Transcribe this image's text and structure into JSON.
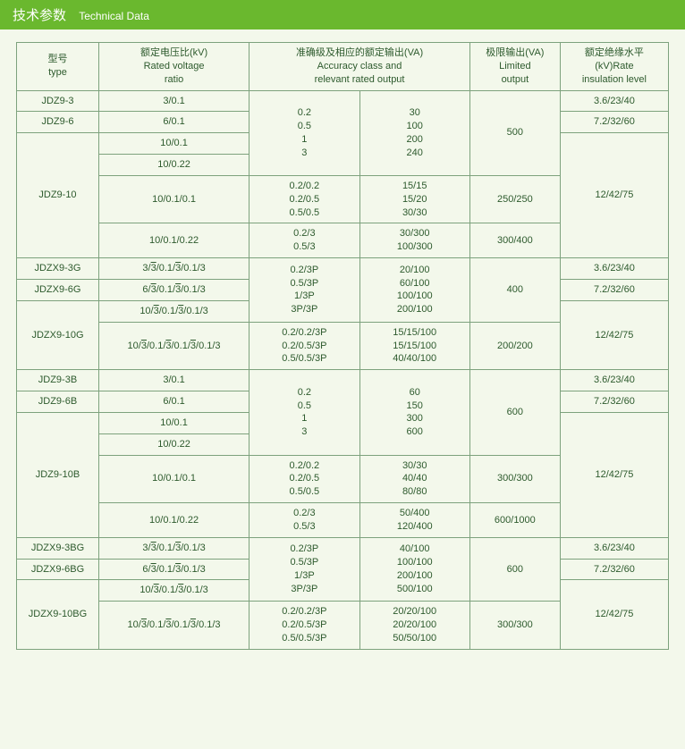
{
  "header": {
    "cn": "技术参数",
    "en": "Technical Data"
  },
  "cols": {
    "type": {
      "cn": "型号",
      "en": "type"
    },
    "ratio": {
      "cn": "额定电压比(kV)",
      "en1": "Rated voltage",
      "en2": "ratio"
    },
    "accuracy": {
      "cn": "准确级及相应的额定输出(VA)",
      "en1": "Accuracy class and",
      "en2": "relevant rated output"
    },
    "limited": {
      "cn": "极限输出(VA)",
      "en1": "Limited",
      "en2": "output"
    },
    "insul": {
      "cn": "额定绝缘水平",
      "en1": "(kV)Rate",
      "en2": "insulation level"
    }
  },
  "t": {
    "jdz9_3": "JDZ9-3",
    "jdz9_6": "JDZ9-6",
    "jdz9_10": "JDZ9-10",
    "jdzx9_3g": "JDZX9-3G",
    "jdzx9_6g": "JDZX9-6G",
    "jdzx9_10g": "JDZX9-10G",
    "jdz9_3b": "JDZ9-3B",
    "jdz9_6b": "JDZ9-6B",
    "jdz9_10b": "JDZ9-10B",
    "jdzx9_3bg": "JDZX9-3BG",
    "jdzx9_6bg": "JDZX9-6BG",
    "jdzx9_10bg": "JDZX9-10BG"
  },
  "r": {
    "r3": "3/0.1",
    "r6": "6/0.1",
    "r10_1": "10/0.1",
    "r10_22": "10/0.22",
    "r10_1_1": "10/0.1/0.1",
    "r10_1_22": "10/0.1/0.22"
  },
  "acc": {
    "a1": "0.2\n0.5\n1\n3",
    "a2": "0.2/0.2\n0.2/0.5\n0.5/0.5",
    "a3": "0.2/3\n0.5/3",
    "g1": "0.2/3P\n0.5/3P\n1/3P\n3P/3P",
    "g2": "0.2/0.2/3P\n0.2/0.5/3P\n0.5/0.5/3P"
  },
  "out": {
    "o1": "30\n100\n200\n240",
    "o2": "15/15\n15/20\n30/30",
    "o3": "30/300\n100/300",
    "g1": "20/100\n60/100\n100/100\n200/100",
    "g2": "15/15/100\n15/15/100\n40/40/100",
    "b1": "60\n150\n300\n600",
    "b2": "30/30\n40/40\n80/80",
    "b3": "50/400\n120/400",
    "bg1": "40/100\n100/100\n200/100\n500/100",
    "bg2": "20/20/100\n20/20/100\n50/50/100"
  },
  "lim": {
    "l500": "500",
    "l250": "250/250",
    "l300_400": "300/400",
    "l400": "400",
    "l200": "200/200",
    "l600": "600",
    "l300_300": "300/300",
    "l600_1000": "600/1000",
    "l300": "300/300"
  },
  "ins": {
    "i36": "3.6/23/40",
    "i72": "7.2/32/60",
    "i12": "12/42/75"
  }
}
